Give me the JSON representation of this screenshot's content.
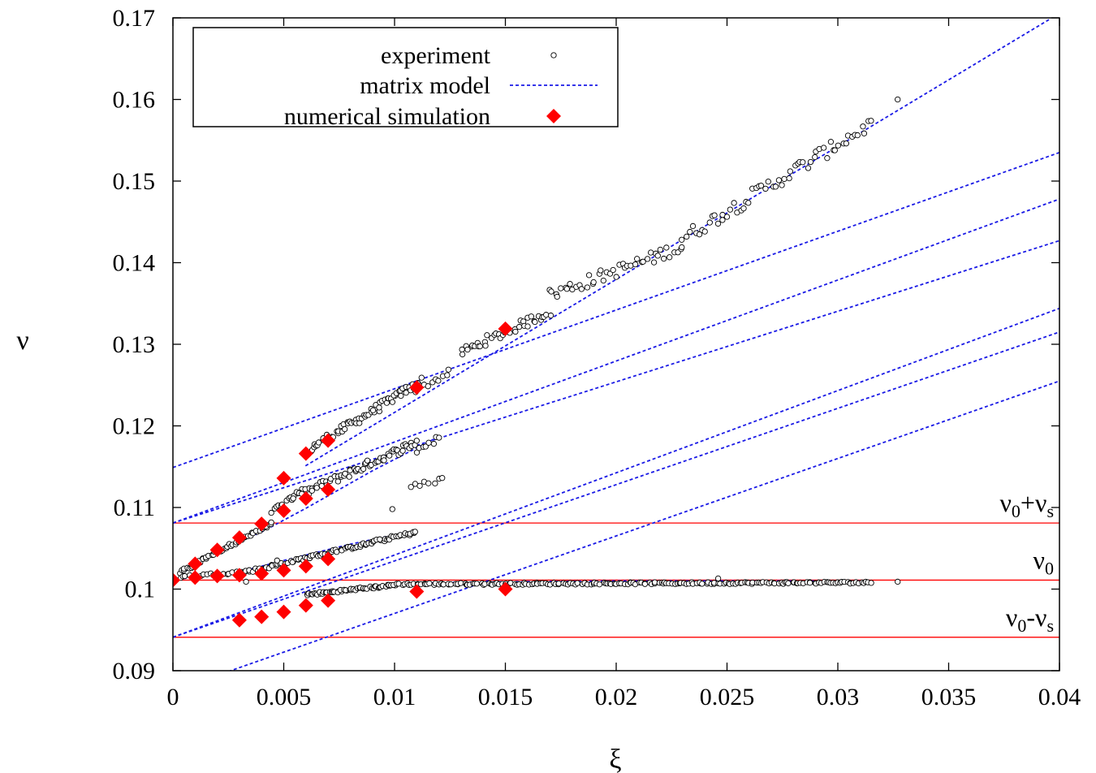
{
  "chart_data": {
    "type": "scatter",
    "xlabel": "ξ",
    "ylabel": "ν",
    "xlim": [
      0,
      0.04
    ],
    "ylim": [
      0.09,
      0.17
    ],
    "xticks": [
      "0",
      "0.005",
      "0.01",
      "0.015",
      "0.02",
      "0.025",
      "0.03",
      "0.035",
      "0.04"
    ],
    "yticks": [
      "0.09",
      "0.1",
      "0.11",
      "0.12",
      "0.13",
      "0.14",
      "0.15",
      "0.16",
      "0.17"
    ],
    "legend_position": "top-left",
    "legend": [
      {
        "label": "experiment",
        "marker": "circle"
      },
      {
        "label": "matrix model",
        "marker": "dashed-line"
      },
      {
        "label": "numerical simulation",
        "marker": "diamond"
      }
    ],
    "colors": {
      "experiment": "#000000",
      "model": "#1a1ae6",
      "simulation": "#ff0000",
      "reference": "#ff0000"
    },
    "reference_lines": [
      {
        "y": 0.1081,
        "label_main": "ν",
        "label_sub": "0",
        "label_rest": "+ν",
        "label_rest_sub": "s"
      },
      {
        "y": 0.1011,
        "label_main": "ν",
        "label_sub": "0",
        "label_rest": "",
        "label_rest_sub": ""
      },
      {
        "y": 0.0941,
        "label_main": "ν",
        "label_sub": "0",
        "label_rest": "-ν",
        "label_rest_sub": "s"
      }
    ],
    "model_lines": [
      {
        "x": [
          0,
          0.04
        ],
        "y": [
          0.1149,
          0.1535
        ]
      },
      {
        "x": [
          0,
          0.04
        ],
        "y": [
          0.1081,
          0.1478
        ]
      },
      {
        "x": [
          0,
          0.04
        ],
        "y": [
          0.1081,
          0.1427
        ]
      },
      {
        "x": [
          0,
          0.04
        ],
        "y": [
          0.0941,
          0.1344
        ]
      },
      {
        "x": [
          0,
          0.04
        ],
        "y": [
          0.0941,
          0.1315
        ]
      },
      {
        "x": [
          0.0025,
          0.04
        ],
        "y": [
          0.0899,
          0.1255
        ]
      },
      {
        "x": [
          0.00598,
          0.0396
        ],
        "y": [
          0.1151,
          0.1699
        ]
      }
    ],
    "model_curves": [
      {
        "x": [
          0.0002,
          0.0008,
          0.0015,
          0.0025,
          0.004,
          0.006,
          0.009,
          0.012
        ],
        "y": [
          0.1012,
          0.1028,
          0.1041,
          0.1052,
          0.107,
          0.1099,
          0.1145,
          0.1187
        ]
      },
      {
        "x": [
          0.0002,
          0.0008,
          0.0015,
          0.002,
          0.003,
          0.005,
          0.008,
          0.011
        ],
        "y": [
          0.1012,
          0.1014,
          0.1017,
          0.1018,
          0.1021,
          0.1035,
          0.1055,
          0.1072
        ]
      },
      {
        "x": [
          0.006,
          0.008,
          0.01,
          0.012,
          0.015,
          0.02,
          0.03,
          0.0315
        ],
        "y": [
          0.0992,
          0.1001,
          0.1006,
          0.1008,
          0.1009,
          0.101,
          0.101,
          0.101
        ]
      }
    ],
    "experiment_segments": [
      {
        "x0": 0.0003,
        "x1": 0.0012,
        "y0": 0.102,
        "y1": 0.1033,
        "n": 12,
        "noise": 0.0002
      },
      {
        "x0": 0.0012,
        "x1": 0.0045,
        "y0": 0.1035,
        "y1": 0.108,
        "n": 40,
        "noise": 0.0002
      },
      {
        "x0": 0.0045,
        "x1": 0.0058,
        "y0": 0.1095,
        "y1": 0.112,
        "n": 14,
        "noise": 0.0003
      },
      {
        "x0": 0.0062,
        "x1": 0.0112,
        "y0": 0.1172,
        "y1": 0.1255,
        "n": 70,
        "noise": 0.0005
      },
      {
        "x0": 0.011,
        "x1": 0.0125,
        "y0": 0.1245,
        "y1": 0.1265,
        "n": 10,
        "noise": 0.0004
      },
      {
        "x0": 0.013,
        "x1": 0.017,
        "y0": 0.129,
        "y1": 0.134,
        "n": 40,
        "noise": 0.0006
      },
      {
        "x0": 0.017,
        "x1": 0.023,
        "y0": 0.136,
        "y1": 0.142,
        "n": 45,
        "noise": 0.0008
      },
      {
        "x0": 0.023,
        "x1": 0.0315,
        "y0": 0.143,
        "y1": 0.157,
        "n": 60,
        "noise": 0.0009
      },
      {
        "x0": 0.0055,
        "x1": 0.011,
        "y0": 0.1113,
        "y1": 0.118,
        "n": 70,
        "noise": 0.0005
      },
      {
        "x0": 0.011,
        "x1": 0.012,
        "y0": 0.117,
        "y1": 0.1185,
        "n": 8,
        "noise": 0.0004
      },
      {
        "x0": 0.0108,
        "x1": 0.0122,
        "y0": 0.1125,
        "y1": 0.1135,
        "n": 8,
        "noise": 0.0003
      },
      {
        "x0": 0.0003,
        "x1": 0.0035,
        "y0": 0.1015,
        "y1": 0.1022,
        "n": 22,
        "noise": 0.00015
      },
      {
        "x0": 0.0035,
        "x1": 0.011,
        "y0": 0.1022,
        "y1": 0.107,
        "n": 90,
        "noise": 0.0002
      },
      {
        "x0": 0.006,
        "x1": 0.01,
        "y0": 0.0993,
        "y1": 0.1005,
        "n": 55,
        "noise": 0.00015
      },
      {
        "x0": 0.01,
        "x1": 0.0315,
        "y0": 0.1006,
        "y1": 0.1008,
        "n": 200,
        "noise": 0.00012
      }
    ],
    "experiment_points": [
      {
        "x": 0.0327,
        "y": 0.16
      },
      {
        "x": 0.0099,
        "y": 0.1098
      },
      {
        "x": 0.0047,
        "y": 0.1035
      },
      {
        "x": 0.0246,
        "y": 0.1013
      },
      {
        "x": 0.0327,
        "y": 0.1009
      },
      {
        "x": 0.0033,
        "y": 0.1009
      }
    ],
    "simulation": [
      {
        "x": 0.0,
        "y": 0.1011
      },
      {
        "x": 0.001,
        "y": 0.1031
      },
      {
        "x": 0.002,
        "y": 0.1048
      },
      {
        "x": 0.003,
        "y": 0.1063
      },
      {
        "x": 0.004,
        "y": 0.108
      },
      {
        "x": 0.005,
        "y": 0.1096
      },
      {
        "x": 0.005,
        "y": 0.1136
      },
      {
        "x": 0.006,
        "y": 0.1111
      },
      {
        "x": 0.006,
        "y": 0.1166
      },
      {
        "x": 0.007,
        "y": 0.1122
      },
      {
        "x": 0.007,
        "y": 0.1182
      },
      {
        "x": 0.011,
        "y": 0.1247
      },
      {
        "x": 0.015,
        "y": 0.1319
      },
      {
        "x": 0.001,
        "y": 0.1014
      },
      {
        "x": 0.002,
        "y": 0.1016
      },
      {
        "x": 0.003,
        "y": 0.1017
      },
      {
        "x": 0.004,
        "y": 0.1019
      },
      {
        "x": 0.005,
        "y": 0.1023
      },
      {
        "x": 0.006,
        "y": 0.1028
      },
      {
        "x": 0.007,
        "y": 0.1037
      },
      {
        "x": 0.003,
        "y": 0.0962
      },
      {
        "x": 0.004,
        "y": 0.0966
      },
      {
        "x": 0.005,
        "y": 0.0972
      },
      {
        "x": 0.006,
        "y": 0.098
      },
      {
        "x": 0.007,
        "y": 0.0986
      },
      {
        "x": 0.011,
        "y": 0.0997
      },
      {
        "x": 0.015,
        "y": 0.1
      }
    ]
  }
}
